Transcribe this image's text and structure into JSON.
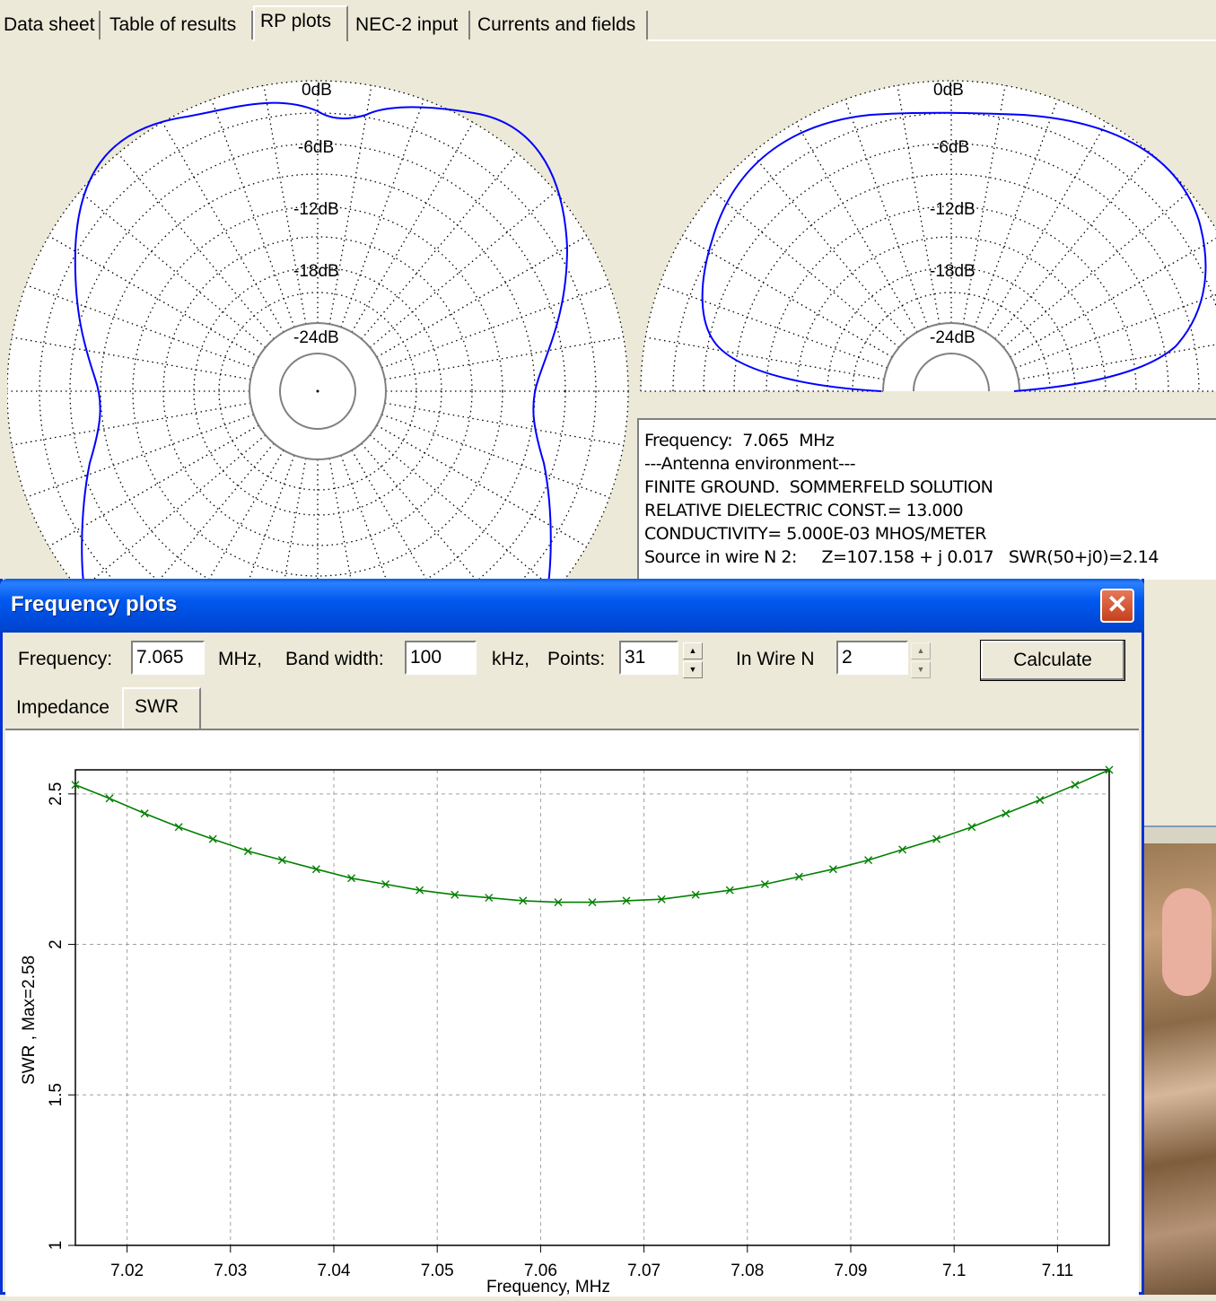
{
  "top_tabs": [
    "Data sheet",
    "Table of results",
    "RP plots",
    "NEC-2 input",
    "Currents and fields"
  ],
  "active_top_tab": "RP plots",
  "polar_labels": [
    "0dB",
    "-6dB",
    "-12dB",
    "-18dB",
    "-24dB"
  ],
  "info": {
    "lines": [
      "Frequency:  7.065  MHz",
      "---Antenna environment---",
      "FINITE GROUND.  SOMMERFELD SOLUTION",
      "RELATIVE DIELECTRIC CONST.= 13.000",
      "CONDUCTIVITY= 5.000E-03 MHOS/METER",
      "Source in wire N 2:     Z=107.158 + j 0.017   SWR(50+j0)=2.14"
    ]
  },
  "dialog": {
    "title": "Frequency plots",
    "close_glyph": "✕",
    "frequency_label": "Frequency:",
    "frequency_value": "7.065",
    "mhz_label": "MHz,",
    "bandwidth_label": "Band width:",
    "bandwidth_value": "100",
    "khz_label": "kHz,",
    "points_label": "Points:",
    "points_value": "31",
    "wire_label": "In Wire N",
    "wire_value": "2",
    "calculate_label": "Calculate",
    "tabs": [
      "Impedance",
      "SWR"
    ],
    "active_tab": "SWR"
  },
  "chart_data": {
    "type": "line",
    "xlabel": "Frequency, MHz",
    "ylabel": "SWR , Max=2.58",
    "xlim": [
      7.015,
      7.115
    ],
    "ylim": [
      1.0,
      2.58
    ],
    "x_ticks": [
      7.02,
      7.03,
      7.04,
      7.05,
      7.06,
      7.07,
      7.08,
      7.09,
      7.1,
      7.11
    ],
    "x_tick_labels": [
      "7.02",
      "7.03",
      "7.04",
      "7.05",
      "7.06",
      "7.07",
      "7.08",
      "7.09",
      "7.1",
      "7.11"
    ],
    "y_ticks": [
      1,
      1.5,
      2,
      2.5
    ],
    "y_tick_labels": [
      "1",
      "1.5",
      "2",
      "2.5"
    ],
    "grid": true,
    "series": [
      {
        "color": "#008000",
        "x": [
          7.015,
          7.0183,
          7.0217,
          7.025,
          7.0283,
          7.0317,
          7.035,
          7.0383,
          7.0417,
          7.045,
          7.0483,
          7.0517,
          7.055,
          7.0583,
          7.0617,
          7.065,
          7.0683,
          7.0717,
          7.075,
          7.0783,
          7.0817,
          7.085,
          7.0883,
          7.0917,
          7.095,
          7.0983,
          7.1017,
          7.105,
          7.1083,
          7.1117,
          7.115
        ],
        "values": [
          2.53,
          2.485,
          2.435,
          2.39,
          2.35,
          2.31,
          2.28,
          2.25,
          2.22,
          2.2,
          2.18,
          2.165,
          2.155,
          2.145,
          2.14,
          2.14,
          2.145,
          2.15,
          2.165,
          2.18,
          2.2,
          2.225,
          2.25,
          2.28,
          2.315,
          2.35,
          2.39,
          2.435,
          2.48,
          2.53,
          2.58
        ]
      }
    ]
  }
}
